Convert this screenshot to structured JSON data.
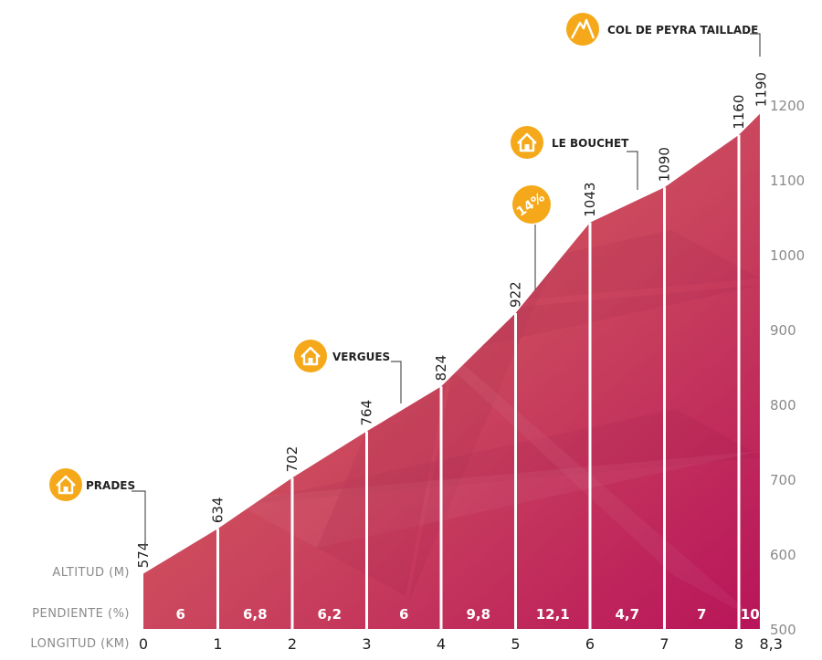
{
  "chart_data": {
    "type": "area",
    "title": "",
    "xlabel": "LONGITUD (KM)",
    "ylabel": "ALTITUD (M)",
    "slope_row_label": "PENDIENTE (%)",
    "xlim": [
      0,
      8.3
    ],
    "ylim": [
      500,
      1200
    ],
    "x": [
      0,
      1,
      2,
      3,
      4,
      5,
      6,
      7,
      8,
      8.3
    ],
    "x_tick_labels": [
      "0",
      "1",
      "2",
      "3",
      "4",
      "5",
      "6",
      "7",
      "8",
      "8,3"
    ],
    "altitudes": [
      574,
      634,
      702,
      764,
      824,
      922,
      1043,
      1090,
      1160,
      1190
    ],
    "altitude_labels": [
      "574",
      "634",
      "702",
      "764",
      "824",
      "922",
      "1043",
      "1090",
      "1160",
      "1190"
    ],
    "y_ticks": [
      500,
      600,
      700,
      800,
      900,
      1000,
      1100,
      1200
    ],
    "y_tick_labels": [
      "500",
      "600",
      "700",
      "800",
      "900",
      "1000",
      "1100",
      "1200"
    ],
    "slopes": [
      "6",
      "6,8",
      "6,2",
      "6",
      "9,8",
      "12,1",
      "4,7",
      "7",
      "10"
    ],
    "waypoints": [
      {
        "name": "PRADES",
        "icon": "house-icon",
        "km": 0,
        "label_alt": 690
      },
      {
        "name": "VERGUES",
        "icon": "house-icon",
        "km": 3.45,
        "label_alt": 870
      },
      {
        "name": "LE BOUCHET",
        "icon": "house-icon",
        "km": 6.65,
        "label_alt": 1135
      },
      {
        "name": "COL DE PEYRA TAILLADE",
        "icon": "mountain-icon",
        "km": 8.3,
        "label_alt": 1280
      }
    ],
    "max_slope_marker": {
      "text": "14%",
      "km": 5.25,
      "icon": "gradient-badge-icon"
    },
    "colors": {
      "fill_top": "#d9675a",
      "fill_bottom": "#c01f5e",
      "badge": "#f5a91a",
      "dividers": "#ffffff"
    }
  }
}
